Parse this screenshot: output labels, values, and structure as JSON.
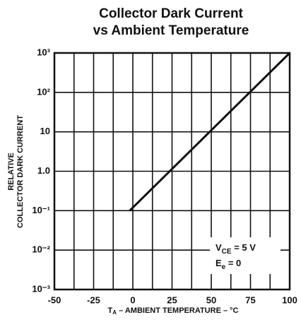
{
  "chart_data": {
    "type": "line",
    "title": [
      "Collector Dark Current",
      "vs Ambient Temperature"
    ],
    "x_label": {
      "main": "T",
      "sub": "A",
      "rest": " – AMBIENT TEMPERATURE – °C"
    },
    "y_label": [
      "RELATIVE",
      "COLLECTOR DARK CURRENT"
    ],
    "annotations": [
      {
        "main": "V",
        "sub": "CE",
        "rest": " = 5 V"
      },
      {
        "main": "E",
        "sub": "e",
        "rest": " = 0"
      }
    ],
    "xlim": [
      -50,
      100
    ],
    "xticks": [
      -50,
      -25,
      0,
      25,
      50,
      75,
      100
    ],
    "x_minor_ticks": [
      -37.5,
      -12.5,
      12.5,
      37.5,
      62.5,
      87.5
    ],
    "ylim": [
      0.001,
      1000
    ],
    "yscale": "log",
    "yticks": [
      {
        "value": 0.001,
        "label": "10⁻³"
      },
      {
        "value": 0.01,
        "label": "10⁻²"
      },
      {
        "value": 0.1,
        "label": "10⁻¹"
      },
      {
        "value": 1,
        "label": "1.0"
      },
      10,
      {
        "value": 100,
        "label": "10²"
      },
      {
        "value": 1000,
        "label": "10³"
      }
    ],
    "grid": true,
    "series": [
      {
        "name": null,
        "color": "#111111",
        "x": [
          -2,
          100
        ],
        "values": [
          0.1,
          1000
        ]
      }
    ]
  }
}
